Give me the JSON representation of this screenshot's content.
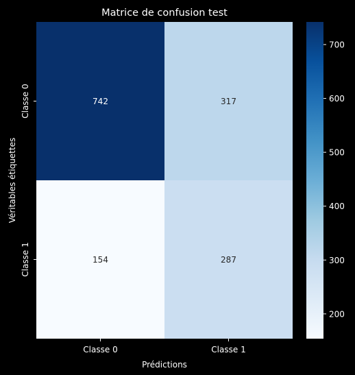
{
  "chart_data": {
    "type": "heatmap",
    "title": "Matrice de confusion test",
    "xlabel": "Prédictions",
    "ylabel": "Véritables étiquettes",
    "x_categories": [
      "Classe 0",
      "Classe 1"
    ],
    "y_categories": [
      "Classe 0",
      "Classe 1"
    ],
    "values": [
      [
        742,
        317
      ],
      [
        154,
        287
      ]
    ],
    "value_labels": [
      [
        "742",
        "317"
      ],
      [
        "154",
        "287"
      ]
    ],
    "colormap": "Blues",
    "colorbar": {
      "range": [
        154,
        742
      ],
      "ticks": [
        200,
        300,
        400,
        500,
        600,
        700
      ],
      "tick_labels": [
        "200",
        "300",
        "400",
        "500",
        "600",
        "700"
      ]
    },
    "colors": {
      "background": "#000000",
      "text": "#ffffff",
      "annotation_dark_cell": "#ffffff",
      "annotation_light_cell": "#262626"
    }
  }
}
